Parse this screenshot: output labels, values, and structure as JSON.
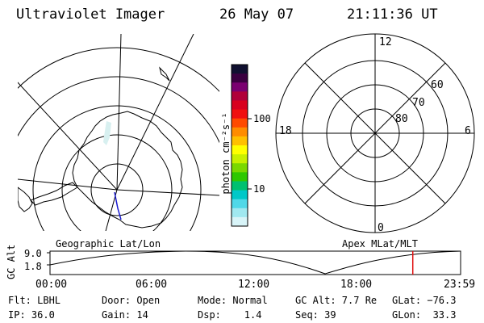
{
  "header": {
    "instrument": "Ultraviolet Imager",
    "date": "26 May 07",
    "time": "21:11:36 UT"
  },
  "colorbar": {
    "unit_label": "photon cm⁻²s⁻¹",
    "ticks": [
      "100",
      "10"
    ],
    "colors": [
      "#101030",
      "#3a0040",
      "#7a0070",
      "#b0003a",
      "#d8001e",
      "#f01010",
      "#ff4a00",
      "#ff8c00",
      "#ffc000",
      "#ffff00",
      "#c8f000",
      "#7ad800",
      "#2ec800",
      "#00c070",
      "#00c8c8",
      "#50d8e8",
      "#a0e8f0",
      "#d8f4f8"
    ]
  },
  "left_panel": {
    "label": "Geographic Lat/Lon"
  },
  "right_panel": {
    "label": "Apex MLat/MLT",
    "mlt_labels": {
      "top": "12",
      "bottom": "0",
      "left": "18",
      "right": "6"
    },
    "lat_labels": [
      "60",
      "70",
      "80"
    ]
  },
  "timeline": {
    "axis_label": "GC Alt",
    "y_ticks": [
      "9.0",
      "1.8"
    ],
    "x_ticks": [
      "00:00",
      "06:00",
      "12:00",
      "18:00",
      "23:59"
    ],
    "current_marker_hours": 21.19
  },
  "info": {
    "flt": "Flt: LBHL",
    "ip": "IP: 36.0",
    "door": "Door: Open",
    "gain": "Gain: 14",
    "mode": "Mode: Normal",
    "dsp": "Dsp:    1.4",
    "gc_alt": "GC Alt: 7.7 Re",
    "seq": "Seq: 39",
    "glat": "GLat: −76.3",
    "glon": "GLon:  33.3"
  }
}
